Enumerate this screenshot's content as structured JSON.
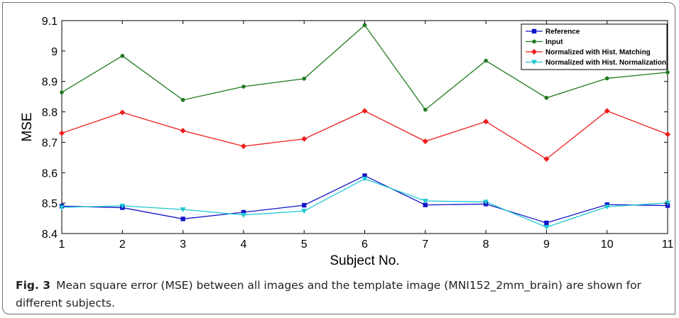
{
  "chart_data": {
    "type": "line",
    "xlabel": "Subject No.",
    "ylabel": "MSE",
    "xlim": [
      1,
      11
    ],
    "ylim": [
      8.4,
      9.1
    ],
    "x": [
      1,
      2,
      3,
      4,
      5,
      6,
      7,
      8,
      9,
      10,
      11
    ],
    "xticks": [
      "1",
      "2",
      "3",
      "4",
      "5",
      "6",
      "7",
      "8",
      "9",
      "10",
      "11"
    ],
    "yticks": [
      "8.4",
      "8.5",
      "8.6",
      "8.7",
      "8.8",
      "8.9",
      "9",
      "9.1"
    ],
    "grid": false,
    "legend_position": "top-right",
    "series": [
      {
        "name": "Reference",
        "color": "#1414c8",
        "marker": "square",
        "values": [
          8.49,
          8.485,
          8.448,
          8.47,
          8.493,
          8.59,
          8.494,
          8.497,
          8.435,
          8.495,
          8.492
        ]
      },
      {
        "name": "Input",
        "color": "#1e7a1e",
        "marker": "circle",
        "values": [
          8.864,
          8.984,
          8.839,
          8.883,
          8.909,
          9.085,
          8.807,
          8.968,
          8.846,
          8.91,
          8.93
        ]
      },
      {
        "name": "Normalized with Hist. Matching",
        "color": "#ee1c1c",
        "marker": "diamond",
        "values": [
          8.73,
          8.798,
          8.738,
          8.687,
          8.711,
          8.803,
          8.703,
          8.768,
          8.645,
          8.803,
          8.726
        ]
      },
      {
        "name": "Normalized with Hist. Normalization",
        "color": "#1ec8d2",
        "marker": "triangle-down",
        "values": [
          8.486,
          8.491,
          8.479,
          8.461,
          8.474,
          8.58,
          8.507,
          8.504,
          8.421,
          8.488,
          8.501
        ]
      }
    ]
  },
  "caption": {
    "figure_label": "Fig. 3",
    "text": "Mean square error (MSE) between all images and the template image (MNI152_2mm_brain) are shown for different subjects."
  }
}
